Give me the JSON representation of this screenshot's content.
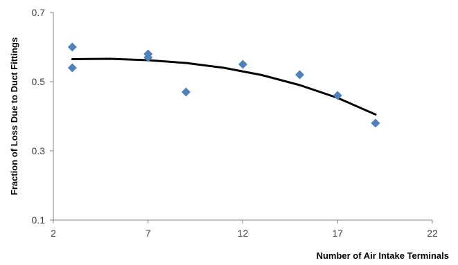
{
  "chart_data": {
    "type": "scatter",
    "title": "",
    "xlabel": "Number of Air Intake Terminals",
    "ylabel": "Fraction of Loss Due to Duct Fittings",
    "xlim": [
      2,
      22
    ],
    "ylim": [
      0.1,
      0.7
    ],
    "xticks": [
      2,
      7,
      12,
      17,
      22
    ],
    "yticks": [
      0.1,
      0.3,
      0.5,
      0.7
    ],
    "ytick_labels": [
      "0.1",
      "0.3",
      "0.5",
      "0.7"
    ],
    "xtick_labels": [
      "2",
      "7",
      "12",
      "17",
      "22"
    ],
    "grid": false,
    "legend": "none",
    "series": [
      {
        "marker": "diamond",
        "color": "#4f81bd",
        "x": [
          3,
          3,
          7,
          7,
          9,
          12,
          15,
          17,
          19
        ],
        "y": [
          0.6,
          0.54,
          0.58,
          0.57,
          0.47,
          0.55,
          0.52,
          0.46,
          0.38
        ]
      }
    ],
    "trendline": {
      "type": "polynomial",
      "color": "#000000",
      "x": [
        3,
        5,
        7,
        9,
        11,
        13,
        15,
        17,
        19
      ],
      "y": [
        0.565,
        0.566,
        0.562,
        0.554,
        0.54,
        0.519,
        0.49,
        0.453,
        0.405
      ]
    }
  }
}
